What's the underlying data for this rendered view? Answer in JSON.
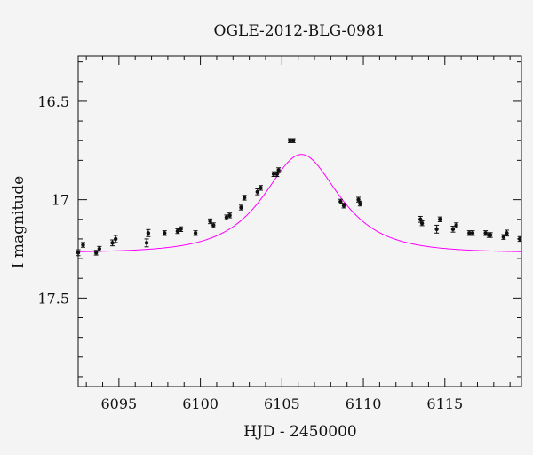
{
  "chart_data": {
    "type": "scatter",
    "title": "OGLE-2012-BLG-0981",
    "xlabel": "HJD - 2450000",
    "ylabel": "I magnitude",
    "xlim": [
      6092.5,
      6119.7
    ],
    "ylim": [
      17.95,
      16.27
    ],
    "y_inverted": true,
    "grid": false,
    "x_ticks": [
      6095,
      6100,
      6105,
      6110,
      6115
    ],
    "x_tick_labels": [
      "6095",
      "6100",
      "6105",
      "6110",
      "6115"
    ],
    "y_ticks": [
      16.5,
      17,
      17.5
    ],
    "y_tick_labels": [
      "16.5",
      "17",
      "17.5"
    ],
    "colors": {
      "data": "#111111",
      "model": "#ff00ff"
    },
    "series": [
      {
        "type": "scatter",
        "x": [
          6092.5,
          6092.8,
          6093.6,
          6093.8,
          6094.6,
          6094.8,
          6096.7,
          6096.8,
          6097.8,
          6098.6,
          6098.8,
          6099.7,
          6100.6,
          6100.8,
          6101.6,
          6101.8,
          6102.5,
          6102.7,
          6103.5,
          6103.7,
          6104.5,
          6104.7,
          6104.8,
          6105.5,
          6105.7,
          6108.6,
          6108.8,
          6109.7,
          6109.8,
          6113.5,
          6113.6,
          6114.5,
          6114.7,
          6115.5,
          6115.7,
          6116.5,
          6116.7,
          6117.5,
          6117.7,
          6117.8,
          6118.6,
          6118.8,
          6119.6
        ],
        "y": [
          17.27,
          17.23,
          17.27,
          17.25,
          17.22,
          17.2,
          17.22,
          17.17,
          17.17,
          17.16,
          17.15,
          17.17,
          17.11,
          17.13,
          17.09,
          17.08,
          17.04,
          16.99,
          16.96,
          16.94,
          16.87,
          16.87,
          16.85,
          16.7,
          16.7,
          17.01,
          17.03,
          17.0,
          17.02,
          17.1,
          17.12,
          17.15,
          17.1,
          17.15,
          17.13,
          17.17,
          17.17,
          17.17,
          17.18,
          17.18,
          17.19,
          17.17,
          17.2
        ],
        "yerr": [
          0.015,
          0.012,
          0.012,
          0.012,
          0.015,
          0.018,
          0.02,
          0.018,
          0.012,
          0.012,
          0.012,
          0.012,
          0.012,
          0.012,
          0.012,
          0.012,
          0.012,
          0.012,
          0.015,
          0.012,
          0.012,
          0.012,
          0.012,
          0.01,
          0.01,
          0.012,
          0.012,
          0.012,
          0.012,
          0.015,
          0.012,
          0.02,
          0.012,
          0.015,
          0.012,
          0.012,
          0.012,
          0.012,
          0.012,
          0.012,
          0.012,
          0.015,
          0.012
        ]
      },
      {
        "type": "line",
        "model": "pspl",
        "baseline": 17.27,
        "peak_x": 6106.2,
        "peak_y": 16.77,
        "half_width": 3.2
      }
    ]
  }
}
